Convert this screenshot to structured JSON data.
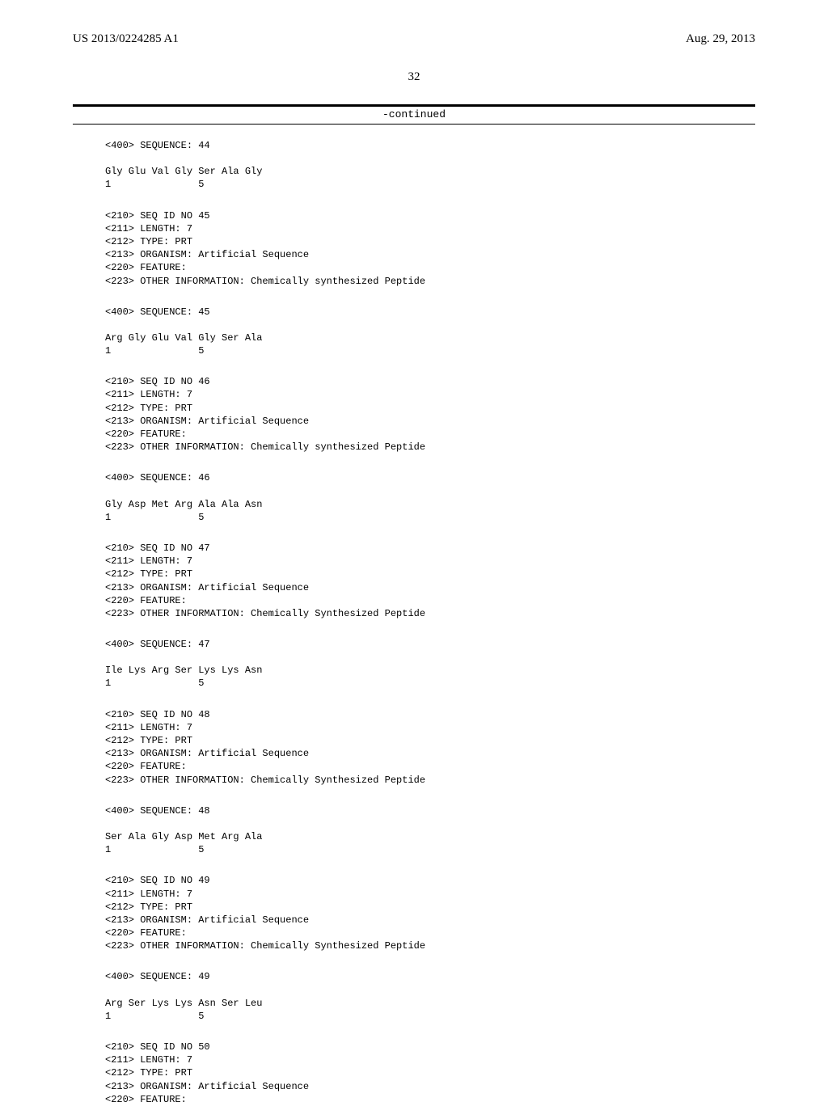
{
  "header": {
    "pub_number": "US 2013/0224285 A1",
    "pub_date": "Aug. 29, 2013"
  },
  "page_number": "32",
  "continued_label": "-continued",
  "blocks": [
    {
      "type": "seq_and_residues",
      "seq_line": "<400> SEQUENCE: 44",
      "residues": "Gly Glu Val Gly Ser Ala Gly",
      "positions": "1               5"
    },
    {
      "type": "metadata",
      "lines": [
        "<210> SEQ ID NO 45",
        "<211> LENGTH: 7",
        "<212> TYPE: PRT",
        "<213> ORGANISM: Artificial Sequence",
        "<220> FEATURE:",
        "<223> OTHER INFORMATION: Chemically synthesized Peptide"
      ]
    },
    {
      "type": "seq_and_residues",
      "seq_line": "<400> SEQUENCE: 45",
      "residues": "Arg Gly Glu Val Gly Ser Ala",
      "positions": "1               5"
    },
    {
      "type": "metadata",
      "lines": [
        "<210> SEQ ID NO 46",
        "<211> LENGTH: 7",
        "<212> TYPE: PRT",
        "<213> ORGANISM: Artificial Sequence",
        "<220> FEATURE:",
        "<223> OTHER INFORMATION: Chemically synthesized Peptide"
      ]
    },
    {
      "type": "seq_and_residues",
      "seq_line": "<400> SEQUENCE: 46",
      "residues": "Gly Asp Met Arg Ala Ala Asn",
      "positions": "1               5"
    },
    {
      "type": "metadata",
      "lines": [
        "<210> SEQ ID NO 47",
        "<211> LENGTH: 7",
        "<212> TYPE: PRT",
        "<213> ORGANISM: Artificial Sequence",
        "<220> FEATURE:",
        "<223> OTHER INFORMATION: Chemically Synthesized Peptide"
      ]
    },
    {
      "type": "seq_and_residues",
      "seq_line": "<400> SEQUENCE: 47",
      "residues": "Ile Lys Arg Ser Lys Lys Asn",
      "positions": "1               5"
    },
    {
      "type": "metadata",
      "lines": [
        "<210> SEQ ID NO 48",
        "<211> LENGTH: 7",
        "<212> TYPE: PRT",
        "<213> ORGANISM: Artificial Sequence",
        "<220> FEATURE:",
        "<223> OTHER INFORMATION: Chemically Synthesized Peptide"
      ]
    },
    {
      "type": "seq_and_residues",
      "seq_line": "<400> SEQUENCE: 48",
      "residues": "Ser Ala Gly Asp Met Arg Ala",
      "positions": "1               5"
    },
    {
      "type": "metadata",
      "lines": [
        "<210> SEQ ID NO 49",
        "<211> LENGTH: 7",
        "<212> TYPE: PRT",
        "<213> ORGANISM: Artificial Sequence",
        "<220> FEATURE:",
        "<223> OTHER INFORMATION: Chemically Synthesized Peptide"
      ]
    },
    {
      "type": "seq_and_residues",
      "seq_line": "<400> SEQUENCE: 49",
      "residues": "Arg Ser Lys Lys Asn Ser Leu",
      "positions": "1               5"
    },
    {
      "type": "metadata",
      "lines": [
        "<210> SEQ ID NO 50",
        "<211> LENGTH: 7",
        "<212> TYPE: PRT",
        "<213> ORGANISM: Artificial Sequence",
        "<220> FEATURE:"
      ]
    }
  ]
}
